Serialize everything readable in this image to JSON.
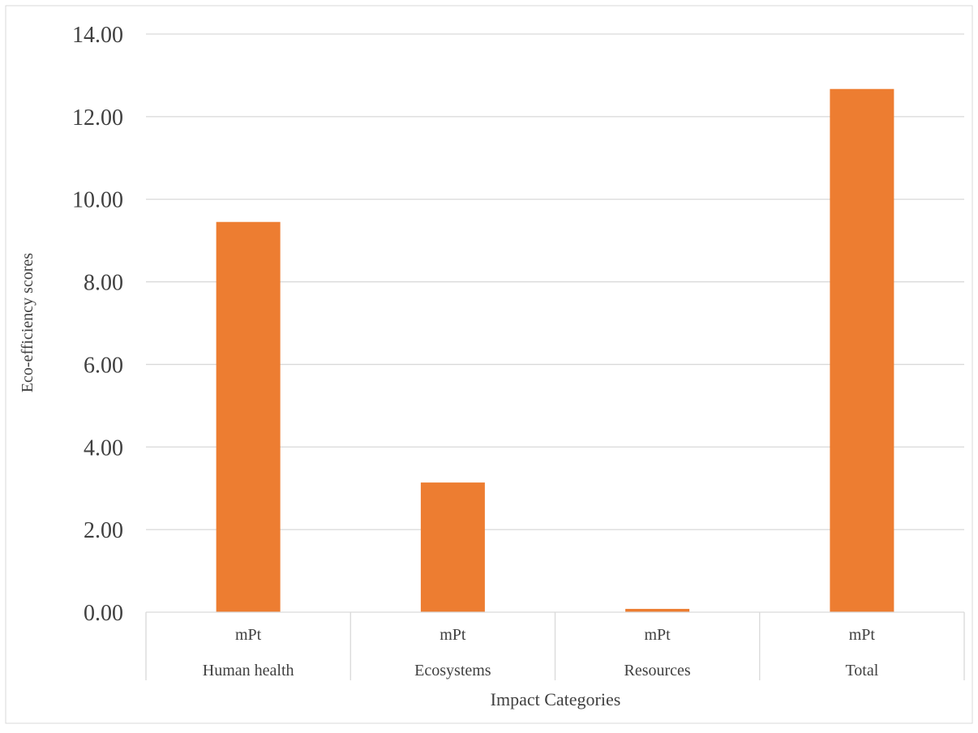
{
  "chart_data": {
    "type": "bar",
    "title": "",
    "xlabel": "Impact Categories",
    "ylabel": "Eco-efficiency scores",
    "categories": [
      "Human health",
      "Ecosystems",
      "Resources",
      "Total"
    ],
    "sub_labels": [
      "mPt",
      "mPt",
      "mPt",
      "mPt"
    ],
    "values": [
      9.45,
      3.14,
      0.08,
      12.67
    ],
    "ylim": [
      0,
      14
    ],
    "yticks": [
      "0.00",
      "2.00",
      "4.00",
      "6.00",
      "8.00",
      "10.00",
      "12.00",
      "14.00"
    ],
    "grid": true,
    "bar_color": "#ED7D31",
    "grid_color": "#D9D9D9"
  }
}
